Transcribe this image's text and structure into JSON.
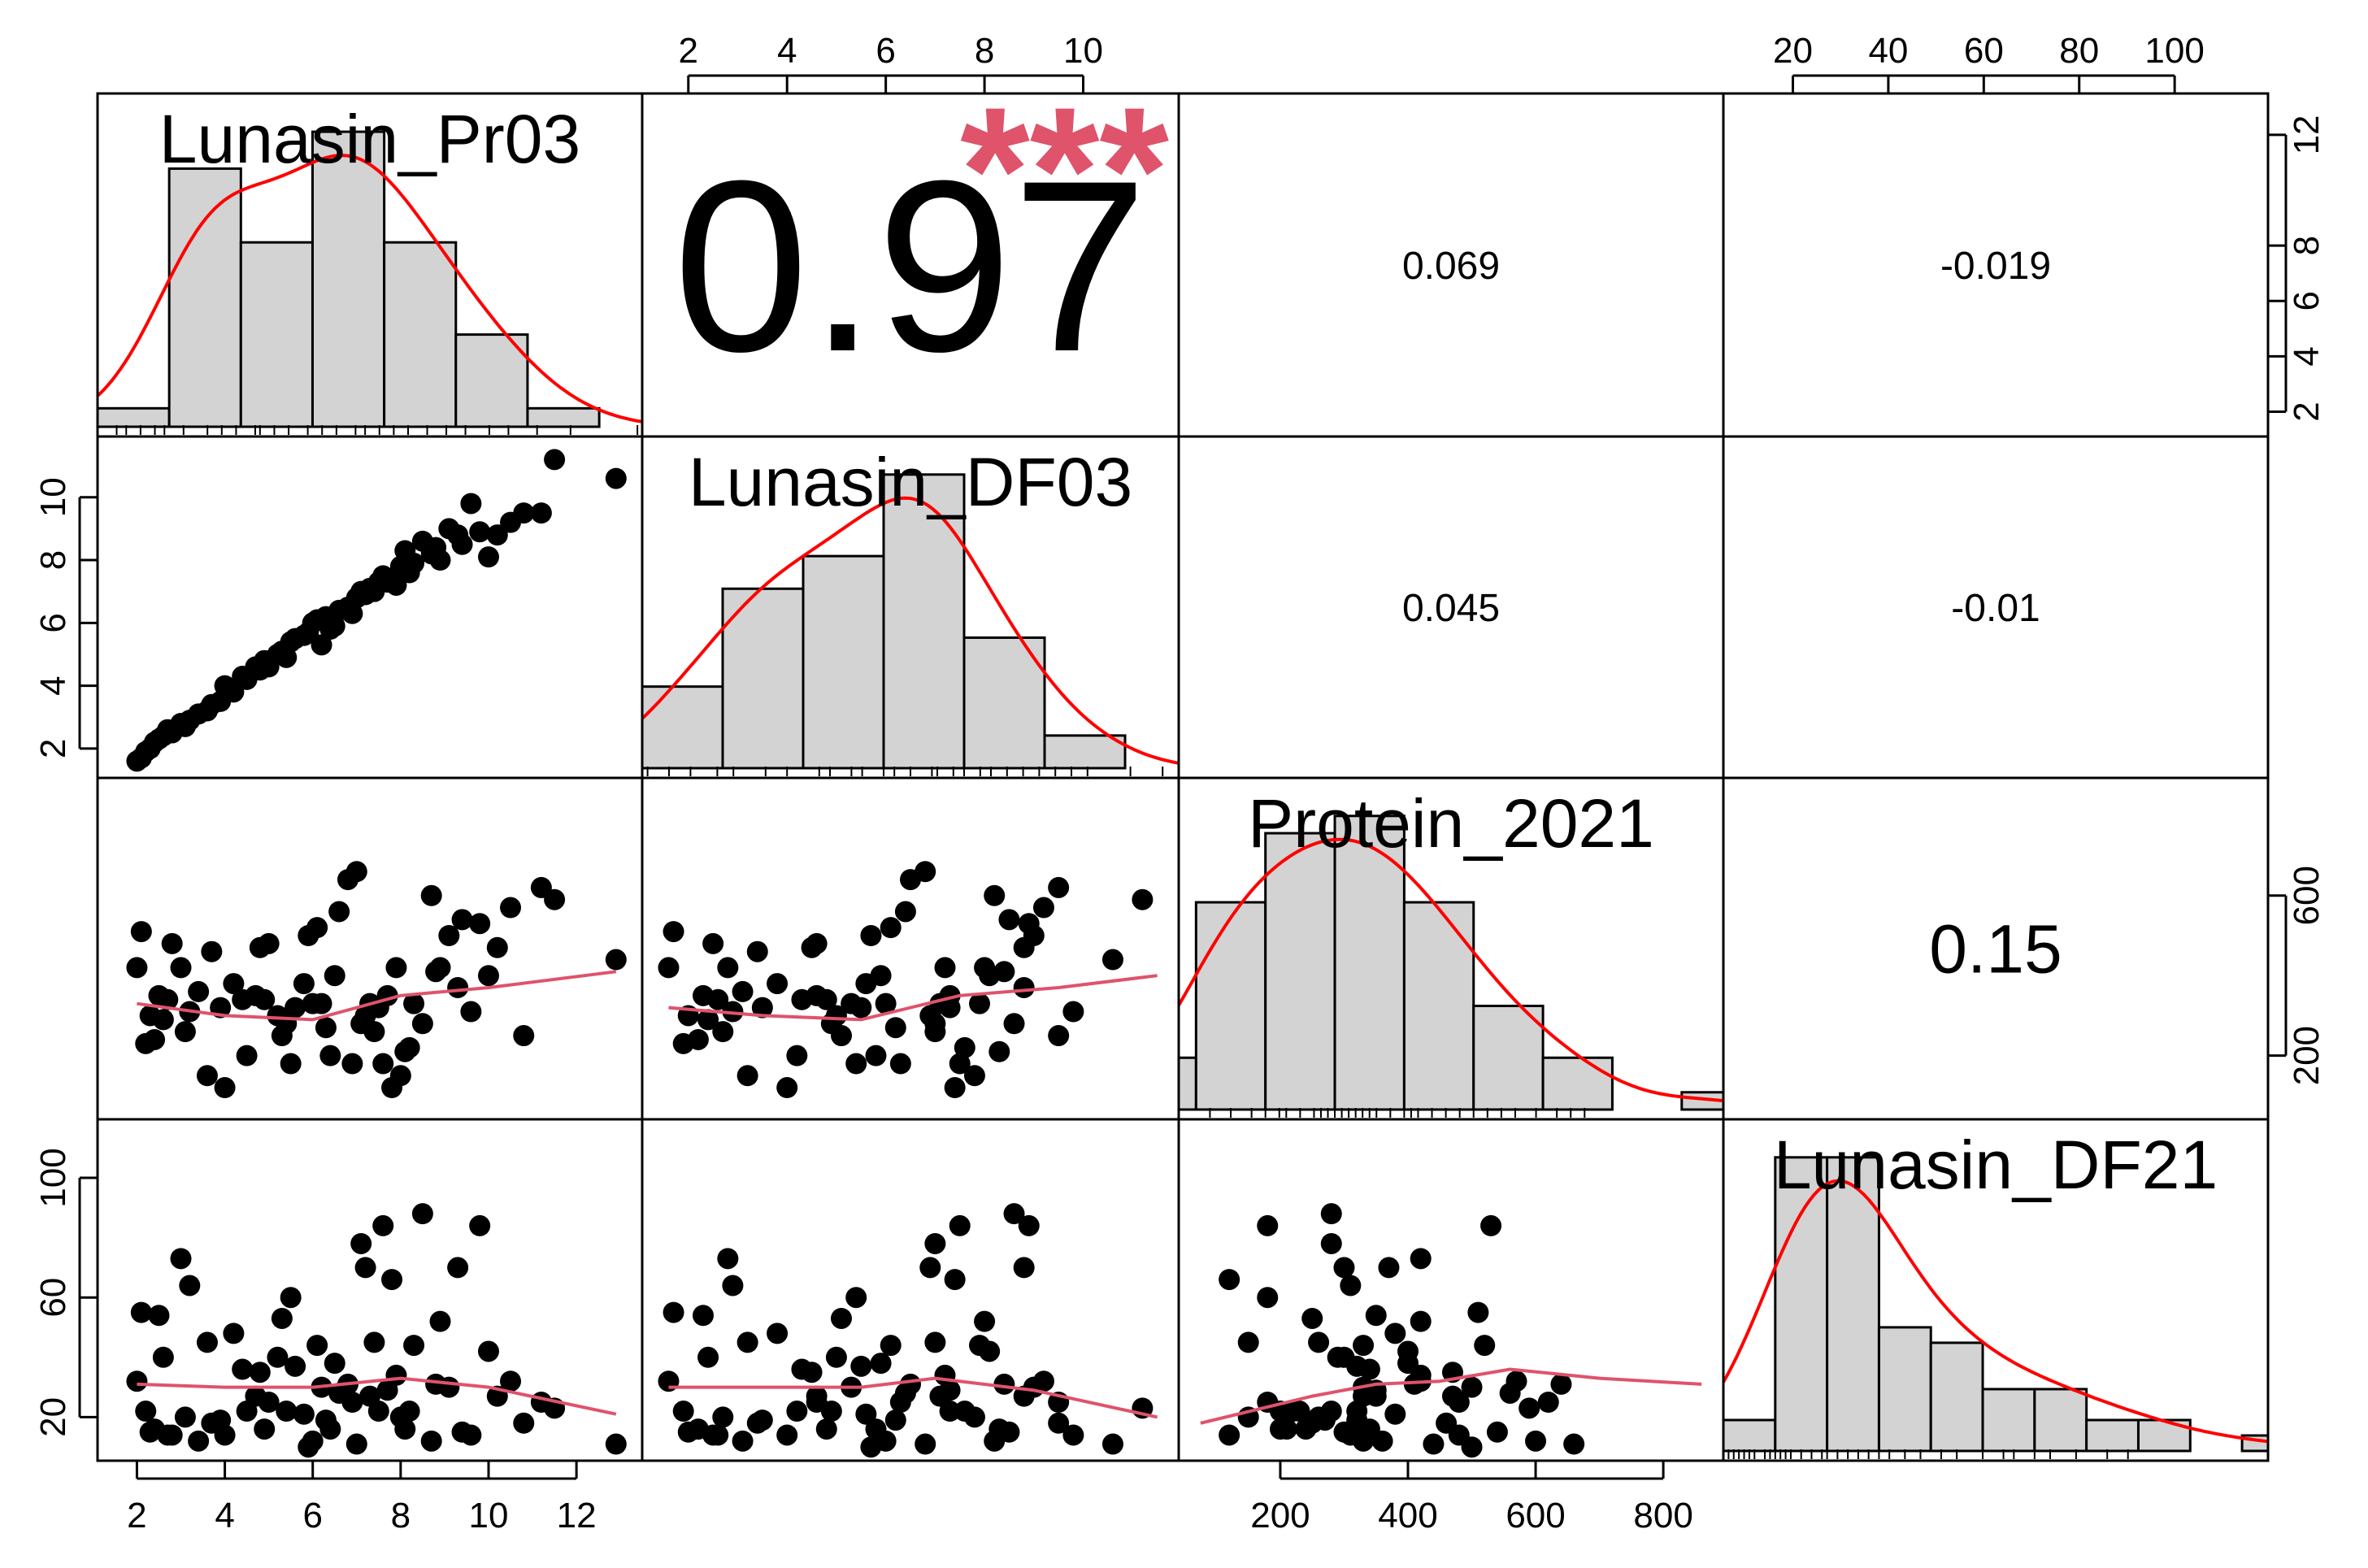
{
  "chart_data": {
    "type": "scatter-matrix",
    "title": "",
    "variables": [
      "Lunasin_Pr03",
      "Lunasin_DF03",
      "Protein_2021",
      "Lunasin_DF21"
    ],
    "ranges": {
      "Lunasin_Pr03": [
        1.6,
        13.0
      ],
      "Lunasin_DF03": [
        1.5,
        11.5
      ],
      "Protein_2021": [
        75,
        860
      ],
      "Lunasin_DF21": [
        10,
        115
      ]
    },
    "ticks": {
      "Lunasin_Pr03": [
        2,
        4,
        6,
        8,
        10,
        12
      ],
      "Lunasin_DF03": [
        2,
        4,
        6,
        8,
        10
      ],
      "Protein_2021": [
        200,
        400,
        600,
        800
      ],
      "Lunasin_DF21": [
        20,
        40,
        60,
        80,
        100
      ]
    },
    "axes": {
      "top_col2": {
        "var": "Lunasin_DF03",
        "labels": [
          "2",
          "4",
          "6",
          "8",
          "10"
        ]
      },
      "top_col4": {
        "var": "Lunasin_DF21",
        "labels": [
          "20",
          "40",
          "60",
          "80",
          "100"
        ]
      },
      "right_row1": {
        "var": "Lunasin_Pr03",
        "labels": [
          "2",
          "4",
          "6",
          "8",
          "12"
        ]
      },
      "right_row3": {
        "var": "Protein_2021",
        "labels": [
          "200",
          "600"
        ]
      },
      "left_row2": {
        "var": "Lunasin_DF03",
        "labels": [
          "2",
          "4",
          "6",
          "8",
          "10"
        ]
      },
      "left_row4": {
        "var": "Lunasin_DF21",
        "labels": [
          "20",
          "60",
          "100"
        ]
      },
      "bottom_col1": {
        "var": "Lunasin_Pr03",
        "labels": [
          "2",
          "4",
          "6",
          "8",
          "10",
          "12"
        ]
      },
      "bottom_col3": {
        "var": "Protein_2021",
        "labels": [
          "200",
          "400",
          "600",
          "800"
        ]
      }
    },
    "correlations": [
      {
        "row": 1,
        "col": 2,
        "label": "0.97",
        "stars": "***"
      },
      {
        "row": 1,
        "col": 3,
        "label": "0.069",
        "stars": ""
      },
      {
        "row": 1,
        "col": 4,
        "label": "-0.019",
        "stars": ""
      },
      {
        "row": 2,
        "col": 3,
        "label": "0.045",
        "stars": ""
      },
      {
        "row": 2,
        "col": 4,
        "label": "-0.01",
        "stars": ""
      },
      {
        "row": 3,
        "col": 4,
        "label": "0.15",
        "stars": ""
      }
    ],
    "histograms": {
      "Lunasin_Pr03": {
        "breaks": [
          1,
          2,
          3,
          4,
          5,
          6,
          7,
          8,
          9
        ],
        "counts": [
          1,
          14,
          10,
          16,
          10,
          5,
          1,
          0
        ],
        "breaks_x": [
          1.6,
          3.1,
          4.6,
          6.1,
          7.6,
          9.1,
          10.6,
          12.1,
          13.0
        ]
      },
      "Lunasin_DF03": {
        "breaks_x": [
          1.5,
          3.0,
          4.5,
          6.0,
          7.5,
          9.0,
          10.5,
          12.0
        ],
        "counts": [
          5,
          11,
          13,
          18,
          8,
          2,
          0
        ]
      },
      "Protein_2021": {
        "breaks_x": [
          75,
          100,
          200,
          300,
          400,
          500,
          600,
          700,
          800,
          860
        ],
        "counts": [
          3,
          12,
          16,
          17,
          12,
          6,
          3,
          0,
          1
        ]
      },
      "Lunasin_DF21": {
        "breaks_x": [
          10,
          20,
          30,
          40,
          50,
          60,
          70,
          80,
          90,
          100,
          110,
          115
        ],
        "counts": [
          2,
          19,
          19,
          8,
          7,
          4,
          4,
          2,
          2,
          0,
          1
        ]
      }
    },
    "density_color": "#ff0000",
    "smooth_color": "#df536b",
    "star_color": "#df536b",
    "points": {
      "Lunasin_Pr03": [
        2.0,
        2.1,
        2.2,
        2.3,
        2.5,
        2.6,
        2.8,
        3.0,
        3.2,
        3.4,
        3.6,
        3.9,
        4.0,
        4.2,
        4.5,
        4.7,
        4.9,
        5.0,
        5.2,
        5.3,
        5.5,
        5.6,
        5.8,
        6.0,
        6.1,
        6.3,
        6.4,
        6.6,
        6.8,
        7.0,
        7.1,
        7.2,
        7.4,
        7.5,
        7.6,
        7.8,
        8.0,
        8.1,
        8.3,
        8.5,
        8.7,
        8.9,
        9.1,
        9.3,
        9.6,
        9.8,
        10.0,
        10.2,
        10.5,
        10.8,
        11.2,
        11.5,
        12.9,
        2.4,
        3.1,
        4.8,
        5.4,
        6.5,
        7.3,
        8.2,
        6.9,
        5.9,
        7.7,
        8.8,
        9.4,
        4.4,
        3.7,
        2.7,
        6.2,
        7.9
      ],
      "Lunasin_DF03": [
        1.6,
        1.7,
        1.9,
        2.0,
        2.3,
        2.4,
        2.5,
        2.8,
        2.9,
        3.1,
        3.2,
        3.5,
        4.0,
        3.8,
        4.2,
        4.6,
        4.8,
        4.6,
        5.0,
        5.1,
        5.4,
        5.5,
        5.6,
        6.0,
        6.1,
        6.2,
        5.8,
        6.4,
        6.5,
        6.8,
        7.0,
        6.9,
        7.0,
        7.3,
        7.5,
        7.4,
        7.8,
        8.3,
        7.9,
        8.6,
        8.2,
        8.0,
        9.0,
        8.8,
        9.8,
        8.9,
        8.1,
        8.8,
        9.2,
        9.5,
        9.5,
        11.2,
        10.6,
        2.2,
        2.7,
        4.5,
        4.9,
        5.9,
        7.1,
        7.6,
        6.3,
        5.7,
        7.3,
        8.4,
        8.5,
        4.3,
        3.4,
        2.6,
        5.3,
        7.2
      ],
      "Protein_2021": [
        420,
        510,
        230,
        300,
        350,
        290,
        480,
        420,
        310,
        360,
        150,
        320,
        120,
        380,
        200,
        350,
        340,
        480,
        300,
        250,
        180,
        320,
        380,
        330,
        520,
        270,
        200,
        560,
        640,
        660,
        280,
        300,
        260,
        320,
        180,
        120,
        150,
        210,
        330,
        280,
        600,
        420,
        500,
        370,
        310,
        530,
        400,
        470,
        570,
        250,
        620,
        590,
        440,
        240,
        260,
        470,
        280,
        400,
        330,
        220,
        180,
        500,
        350,
        410,
        540,
        340,
        460,
        340,
        330,
        420
      ],
      "Lunasin_DF21": [
        32,
        55,
        22,
        15,
        54,
        40,
        14,
        73,
        64,
        12,
        45,
        19,
        14,
        48,
        22,
        27,
        16,
        25,
        40,
        53,
        60,
        37,
        21,
        12,
        44,
        19,
        16,
        28,
        31,
        11,
        78,
        70,
        45,
        22,
        84,
        66,
        20,
        16,
        44,
        88,
        12,
        52,
        30,
        70,
        14,
        84,
        42,
        27,
        32,
        18,
        25,
        23,
        11,
        16,
        20,
        35,
        22,
        38,
        27,
        22,
        25,
        10,
        29,
        31,
        15,
        36,
        18,
        14,
        30,
        34
      ]
    },
    "smooth": {
      "c1_vs_r3": [
        [
          2.0,
          330
        ],
        [
          4.0,
          300
        ],
        [
          6.0,
          290
        ],
        [
          8.0,
          350
        ],
        [
          10.0,
          370
        ],
        [
          12.9,
          410
        ]
      ],
      "c2_vs_r3": [
        [
          1.6,
          320
        ],
        [
          3.5,
          300
        ],
        [
          5.5,
          290
        ],
        [
          7.5,
          350
        ],
        [
          9.5,
          370
        ],
        [
          11.5,
          400
        ]
      ],
      "c1_vs_r4": [
        [
          2.0,
          31
        ],
        [
          4.0,
          30
        ],
        [
          6.0,
          30
        ],
        [
          8.0,
          33
        ],
        [
          10.0,
          30
        ],
        [
          12.9,
          21
        ]
      ],
      "c2_vs_r4": [
        [
          1.6,
          30
        ],
        [
          3.5,
          30
        ],
        [
          5.5,
          30
        ],
        [
          7.0,
          33
        ],
        [
          9.0,
          29
        ],
        [
          11.5,
          20
        ]
      ],
      "c3_vs_r4": [
        [
          75,
          18
        ],
        [
          250,
          27
        ],
        [
          350,
          31
        ],
        [
          450,
          32
        ],
        [
          560,
          36
        ],
        [
          700,
          33
        ],
        [
          860,
          31
        ]
      ]
    },
    "rug": {
      "Lunasin_Pr03": [
        2.0,
        2.2,
        2.5,
        2.8,
        3.0,
        3.4,
        3.9,
        4.2,
        4.5,
        4.9,
        5.0,
        5.3,
        5.6,
        6.0,
        6.3,
        6.6,
        7.0,
        7.2,
        7.5,
        7.8,
        8.1,
        8.5,
        8.9,
        9.3,
        9.8,
        10.2,
        10.8,
        11.5,
        12.9
      ],
      "Lunasin_DF03": [
        1.6,
        2.0,
        2.4,
        2.9,
        3.2,
        3.8,
        4.2,
        4.8,
        5.0,
        5.4,
        5.6,
        6.0,
        6.2,
        6.5,
        6.9,
        7.0,
        7.3,
        7.5,
        7.8,
        8.0,
        8.3,
        8.6,
        8.9,
        9.2,
        9.5,
        9.8,
        10.6,
        11.2
      ],
      "Protein_2021": [
        120,
        150,
        180,
        200,
        220,
        230,
        250,
        270,
        280,
        290,
        300,
        310,
        320,
        330,
        340,
        350,
        360,
        380,
        400,
        410,
        420,
        440,
        460,
        480,
        500,
        520,
        540,
        560,
        590,
        620,
        640,
        660
      ],
      "Lunasin_DF21": [
        11,
        12,
        13,
        14,
        15,
        16,
        18,
        19,
        20,
        21,
        22,
        23,
        25,
        27,
        29,
        30,
        32,
        34,
        36,
        38,
        40,
        42,
        45,
        48,
        52,
        55,
        60,
        64,
        66,
        70,
        73,
        78,
        84,
        88
      ]
    }
  }
}
